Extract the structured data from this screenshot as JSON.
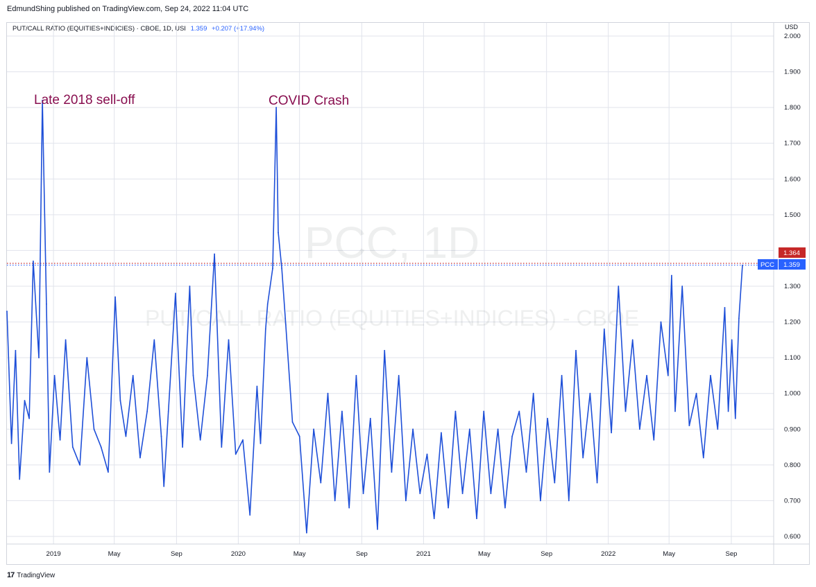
{
  "header": {
    "publisher": "EdmundShing published on TradingView.com, Sep 24, 2022 11:04 UTC"
  },
  "legend": {
    "label": "PUT/CALL RATIO (EQUITIES+INDICIES) · CBOE, 1D, USI",
    "last": "1.359",
    "change": "+0.207 (+17.94%)"
  },
  "currency": "USD",
  "watermark": {
    "line1": "PCC, 1D",
    "line2": "PUT/CALL RATIO (EQUITIES+INDICIES) - CBOE"
  },
  "annotations": [
    "Late 2018 sell-off",
    "COVID Crash"
  ],
  "footer": {
    "brand": "TradingView"
  },
  "colors": {
    "line": "#1e4fd8",
    "accent": "#2962ff",
    "red": "#c62828",
    "annotation": "#880e4f"
  },
  "badges": {
    "red_value": "1.364",
    "ticker": "PCC",
    "last_value": "1.359"
  },
  "chart_data": {
    "type": "line",
    "ylim": [
      0.6,
      2.0
    ],
    "y_ticks": [
      "0.600",
      "0.700",
      "0.800",
      "0.900",
      "1.000",
      "1.100",
      "1.200",
      "1.300",
      "1.400",
      "1.500",
      "1.600",
      "1.700",
      "1.800",
      "1.900",
      "2.000"
    ],
    "x_ticks": [
      "2019",
      "May",
      "Sep",
      "2020",
      "May",
      "Sep",
      "2021",
      "May",
      "Sep",
      "2022",
      "May",
      "Sep"
    ],
    "reference_lines": [
      1.364,
      1.359
    ],
    "series": [
      {
        "x": [
          "2018-10-01",
          "2018-10-10",
          "2018-10-18",
          "2018-10-26",
          "2018-11-05",
          "2018-11-14",
          "2018-11-22",
          "2018-12-03",
          "2018-12-10",
          "2018-12-18",
          "2018-12-24",
          "2019-01-03",
          "2019-01-14",
          "2019-01-25",
          "2019-02-08",
          "2019-02-22",
          "2019-03-08",
          "2019-03-22",
          "2019-04-05",
          "2019-04-19",
          "2019-05-03",
          "2019-05-13",
          "2019-05-24",
          "2019-06-07",
          "2019-06-21",
          "2019-07-05",
          "2019-07-19",
          "2019-08-02",
          "2019-08-07",
          "2019-08-16",
          "2019-08-30",
          "2019-09-13",
          "2019-09-27",
          "2019-10-04",
          "2019-10-18",
          "2019-11-01",
          "2019-11-15",
          "2019-11-29",
          "2019-12-13",
          "2019-12-27",
          "2020-01-10",
          "2020-01-24",
          "2020-02-07",
          "2020-02-14",
          "2020-02-24",
          "2020-02-28",
          "2020-03-09",
          "2020-03-16",
          "2020-03-20",
          "2020-03-27",
          "2020-04-03",
          "2020-04-17",
          "2020-05-01",
          "2020-05-15",
          "2020-05-29",
          "2020-06-12",
          "2020-06-26",
          "2020-07-10",
          "2020-07-24",
          "2020-08-07",
          "2020-08-21",
          "2020-09-04",
          "2020-09-18",
          "2020-10-02",
          "2020-10-16",
          "2020-10-30",
          "2020-11-13",
          "2020-11-27",
          "2020-12-11",
          "2020-12-25",
          "2021-01-08",
          "2021-01-22",
          "2021-02-05",
          "2021-02-19",
          "2021-03-05",
          "2021-03-19",
          "2021-04-02",
          "2021-04-16",
          "2021-04-30",
          "2021-05-14",
          "2021-05-28",
          "2021-06-11",
          "2021-06-25",
          "2021-07-09",
          "2021-07-23",
          "2021-08-06",
          "2021-08-20",
          "2021-09-03",
          "2021-09-17",
          "2021-10-01",
          "2021-10-15",
          "2021-10-29",
          "2021-11-12",
          "2021-11-26",
          "2021-12-10",
          "2021-12-24",
          "2022-01-07",
          "2022-01-21",
          "2022-02-04",
          "2022-02-18",
          "2022-03-04",
          "2022-03-18",
          "2022-04-01",
          "2022-04-15",
          "2022-04-29",
          "2022-05-06",
          "2022-05-13",
          "2022-05-27",
          "2022-06-10",
          "2022-06-24",
          "2022-07-08",
          "2022-07-22",
          "2022-08-05",
          "2022-08-19",
          "2022-08-26",
          "2022-09-02",
          "2022-09-09",
          "2022-09-16",
          "2022-09-23"
        ],
        "values": [
          1.23,
          0.86,
          1.12,
          0.76,
          0.98,
          0.93,
          1.37,
          1.1,
          1.82,
          1.25,
          0.78,
          1.05,
          0.87,
          1.15,
          0.85,
          0.8,
          1.1,
          0.9,
          0.85,
          0.78,
          1.27,
          0.98,
          0.88,
          1.05,
          0.82,
          0.95,
          1.15,
          0.88,
          0.74,
          0.95,
          1.28,
          0.85,
          1.3,
          1.05,
          0.87,
          1.05,
          1.39,
          0.85,
          1.15,
          0.83,
          0.87,
          0.66,
          1.02,
          0.86,
          1.18,
          1.25,
          1.35,
          1.8,
          1.45,
          1.35,
          1.21,
          0.92,
          0.88,
          0.61,
          0.9,
          0.75,
          1.0,
          0.7,
          0.95,
          0.68,
          1.05,
          0.72,
          0.93,
          0.62,
          1.12,
          0.78,
          1.05,
          0.7,
          0.9,
          0.72,
          0.83,
          0.65,
          0.89,
          0.68,
          0.95,
          0.72,
          0.9,
          0.65,
          0.95,
          0.72,
          0.9,
          0.68,
          0.88,
          0.95,
          0.78,
          1.0,
          0.7,
          0.93,
          0.75,
          1.05,
          0.7,
          1.12,
          0.82,
          1.0,
          0.75,
          1.18,
          0.89,
          1.3,
          0.95,
          1.15,
          0.9,
          1.05,
          0.87,
          1.2,
          1.05,
          1.33,
          0.95,
          1.3,
          0.91,
          1.0,
          0.82,
          1.05,
          0.9,
          1.24,
          0.95,
          1.15,
          0.93,
          1.21,
          1.359
        ]
      }
    ]
  }
}
